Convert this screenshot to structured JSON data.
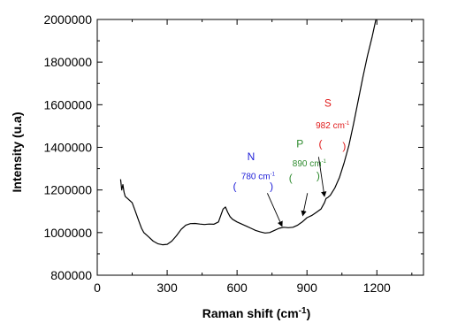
{
  "chart_data": {
    "type": "line",
    "xlabel": "Raman shift (cm",
    "xlabel_sup": "-1",
    "xlabel_suffix": ")",
    "ylabel": "Intensity (u.a)",
    "xlim": [
      0,
      1400
    ],
    "ylim": [
      800000,
      2000000
    ],
    "x_ticks": [
      0,
      300,
      600,
      900,
      1200
    ],
    "y_ticks": [
      800000,
      1000000,
      1200000,
      1400000,
      1600000,
      1800000,
      2000000
    ],
    "x_tick_labels": [
      "0",
      "300",
      "600",
      "900",
      "1200"
    ],
    "y_tick_labels": [
      "800000",
      "1000000",
      "1200000",
      "1400000",
      "1600000",
      "1800000",
      "2000000"
    ],
    "grid": false,
    "series": [
      {
        "color": "#000000",
        "points": [
          [
            100,
            1250000
          ],
          [
            105,
            1200000
          ],
          [
            110,
            1225000
          ],
          [
            115,
            1190000
          ],
          [
            120,
            1170000
          ],
          [
            130,
            1160000
          ],
          [
            140,
            1150000
          ],
          [
            150,
            1140000
          ],
          [
            160,
            1110000
          ],
          [
            170,
            1080000
          ],
          [
            180,
            1050000
          ],
          [
            190,
            1020000
          ],
          [
            200,
            1000000
          ],
          [
            220,
            980000
          ],
          [
            240,
            960000
          ],
          [
            260,
            948000
          ],
          [
            280,
            943000
          ],
          [
            300,
            945000
          ],
          [
            320,
            960000
          ],
          [
            340,
            985000
          ],
          [
            360,
            1015000
          ],
          [
            380,
            1035000
          ],
          [
            400,
            1042000
          ],
          [
            420,
            1043000
          ],
          [
            440,
            1040000
          ],
          [
            460,
            1038000
          ],
          [
            480,
            1040000
          ],
          [
            500,
            1039000
          ],
          [
            520,
            1050000
          ],
          [
            530,
            1080000
          ],
          [
            540,
            1110000
          ],
          [
            550,
            1120000
          ],
          [
            560,
            1095000
          ],
          [
            570,
            1075000
          ],
          [
            580,
            1063000
          ],
          [
            600,
            1050000
          ],
          [
            620,
            1040000
          ],
          [
            640,
            1030000
          ],
          [
            660,
            1020000
          ],
          [
            680,
            1010000
          ],
          [
            700,
            1003000
          ],
          [
            720,
            998000
          ],
          [
            740,
            1000000
          ],
          [
            760,
            1010000
          ],
          [
            780,
            1020000
          ],
          [
            800,
            1025000
          ],
          [
            820,
            1023000
          ],
          [
            840,
            1025000
          ],
          [
            860,
            1035000
          ],
          [
            880,
            1050000
          ],
          [
            900,
            1070000
          ],
          [
            920,
            1080000
          ],
          [
            940,
            1095000
          ],
          [
            960,
            1110000
          ],
          [
            975,
            1140000
          ],
          [
            982,
            1160000
          ],
          [
            990,
            1165000
          ],
          [
            1000,
            1175000
          ],
          [
            1020,
            1210000
          ],
          [
            1040,
            1260000
          ],
          [
            1060,
            1330000
          ],
          [
            1080,
            1410000
          ],
          [
            1100,
            1510000
          ],
          [
            1120,
            1620000
          ],
          [
            1140,
            1730000
          ],
          [
            1160,
            1830000
          ],
          [
            1180,
            1920000
          ],
          [
            1196,
            2000000
          ]
        ]
      }
    ],
    "annotations": [
      {
        "label": "N",
        "sub_label": "780 cm",
        "sup": "-1",
        "color": "#1f1fd8",
        "label_at": [
          660,
          1340000
        ],
        "sub_at": [
          690,
          1250000
        ],
        "paren_left_at": [
          590,
          1200000
        ],
        "paren_right_at": [
          748,
          1200000
        ],
        "arrow_from": [
          730,
          1185000
        ],
        "arrow_to": [
          793,
          1030000
        ]
      },
      {
        "label": "P",
        "sub_label": "890 cm",
        "sup": "-1",
        "color": "#2e8b2e",
        "label_at": [
          870,
          1400000
        ],
        "sub_at": [
          910,
          1310000
        ],
        "paren_left_at": [
          830,
          1240000
        ],
        "paren_right_at": [
          948,
          1250000
        ],
        "arrow_from": [
          902,
          1185000
        ],
        "arrow_to": [
          882,
          1080000
        ]
      },
      {
        "label": "S",
        "sub_label": "982 cm",
        "sup": "-1",
        "color": "#e01a1a",
        "label_at": [
          990,
          1590000
        ],
        "sub_at": [
          1010,
          1490000
        ],
        "paren_left_at": [
          958,
          1400000
        ],
        "paren_right_at": [
          1060,
          1390000
        ],
        "arrow_from": [
          950,
          1355000
        ],
        "arrow_to": [
          975,
          1170000
        ]
      }
    ]
  }
}
